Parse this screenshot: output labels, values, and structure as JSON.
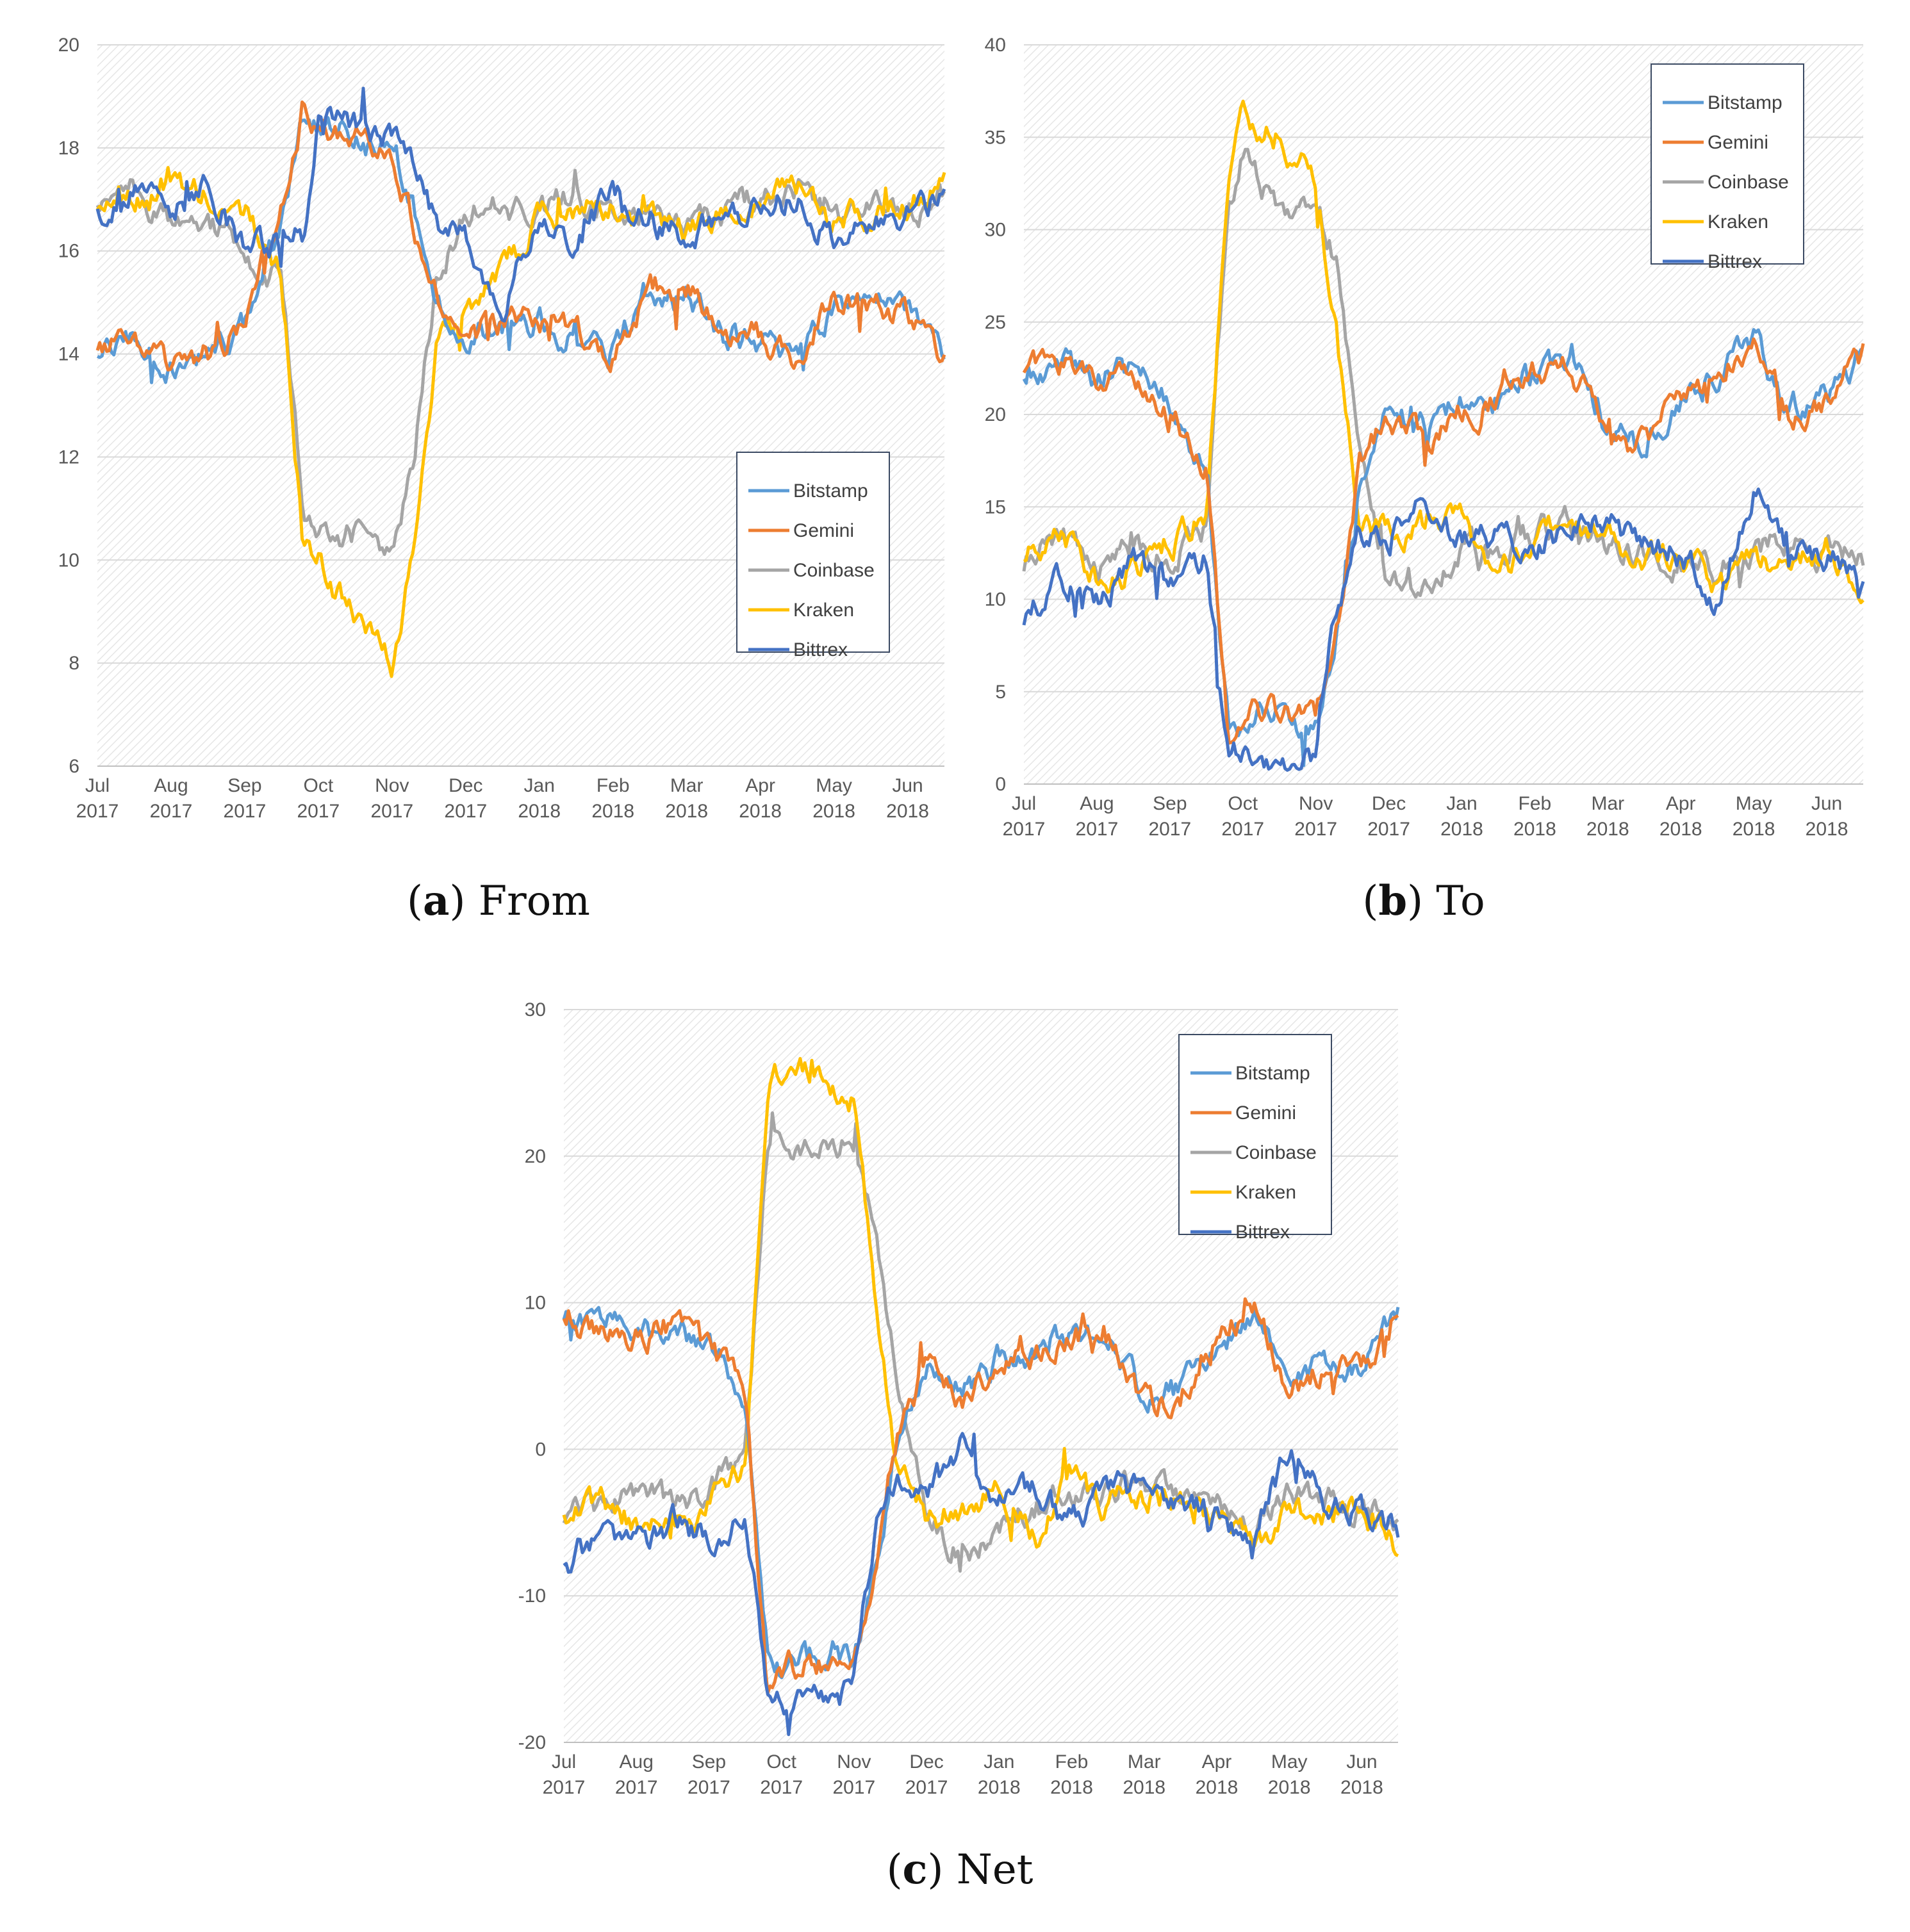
{
  "legend_colors": {
    "Bitstamp": "#5b9bd5",
    "Gemini": "#ed7d31",
    "Coinbase": "#a5a5a5",
    "Kraken": "#ffc000",
    "Bittrex": "#4472c4"
  },
  "chart_data": [
    {
      "type": "line",
      "panel": "a",
      "caption": {
        "letter": "a",
        "text": "From"
      },
      "xlabel": "",
      "ylabel": "",
      "ylim": [
        6,
        20
      ],
      "yticks": [
        "6",
        "8",
        "10",
        "12",
        "14",
        "16",
        "18",
        "20"
      ],
      "xticks": [
        {
          "month": "Jul",
          "year": "2017"
        },
        {
          "month": "Aug",
          "year": "2017"
        },
        {
          "month": "Sep",
          "year": "2017"
        },
        {
          "month": "Oct",
          "year": "2017"
        },
        {
          "month": "Nov",
          "year": "2017"
        },
        {
          "month": "Dec",
          "year": "2017"
        },
        {
          "month": "Jan",
          "year": "2018"
        },
        {
          "month": "Feb",
          "year": "2018"
        },
        {
          "month": "Mar",
          "year": "2018"
        },
        {
          "month": "Apr",
          "year": "2018"
        },
        {
          "month": "May",
          "year": "2018"
        },
        {
          "month": "Jun",
          "year": "2018"
        }
      ],
      "legend_position": "bottom-right",
      "x_months": [
        0,
        0.5,
        1,
        1.5,
        2,
        2.5,
        2.8,
        3,
        3.5,
        4,
        4.3,
        4.6,
        5,
        5.5,
        6,
        6.5,
        7,
        7.5,
        8,
        8.5,
        9,
        9.5,
        10,
        10.5,
        11,
        11.5
      ],
      "series": [
        {
          "name": "Bitstamp",
          "values": [
            13.9,
            14.3,
            13.8,
            14.0,
            14.5,
            16.5,
            18.8,
            18.4,
            18.2,
            17.8,
            16.8,
            15.0,
            14.3,
            14.5,
            14.6,
            14.3,
            14.0,
            15.2,
            15.3,
            14.4,
            14.3,
            13.8,
            15.0,
            14.9,
            14.8,
            13.9
          ]
        },
        {
          "name": "Gemini",
          "values": [
            14.0,
            14.4,
            13.6,
            14.0,
            14.6,
            16.8,
            18.9,
            18.5,
            18.3,
            18.0,
            16.6,
            15.2,
            14.3,
            14.6,
            14.7,
            14.4,
            14.0,
            15.3,
            15.3,
            14.5,
            14.4,
            13.8,
            15.1,
            14.9,
            14.8,
            14.0
          ]
        },
        {
          "name": "Coinbase",
          "values": [
            16.8,
            17.2,
            16.6,
            16.6,
            16.0,
            15.4,
            11.0,
            10.6,
            10.5,
            10.2,
            12.0,
            15.5,
            16.8,
            17.0,
            16.8,
            17.0,
            16.9,
            16.6,
            16.4,
            16.7,
            17.1,
            17.2,
            16.6,
            16.8,
            16.6,
            17.0
          ]
        },
        {
          "name": "Kraken",
          "values": [
            16.7,
            17.0,
            17.2,
            17.1,
            16.8,
            15.5,
            10.2,
            10.0,
            8.8,
            8.0,
            10.2,
            14.0,
            15.0,
            15.5,
            16.6,
            16.9,
            16.8,
            16.5,
            16.4,
            16.9,
            17.1,
            17.3,
            16.6,
            16.8,
            16.8,
            17.4
          ]
        },
        {
          "name": "Bittrex",
          "values": [
            16.7,
            17.1,
            16.8,
            17.4,
            16.0,
            16.2,
            16.3,
            18.6,
            18.4,
            18.2,
            17.6,
            16.5,
            16.3,
            15.0,
            16.6,
            16.2,
            17.1,
            16.7,
            16.3,
            16.6,
            16.9,
            17.0,
            16.2,
            16.6,
            16.7,
            17.1
          ]
        }
      ]
    },
    {
      "type": "line",
      "panel": "b",
      "caption": {
        "letter": "b",
        "text": "To"
      },
      "xlabel": "",
      "ylabel": "",
      "ylim": [
        0,
        40
      ],
      "yticks": [
        "0",
        "5",
        "10",
        "15",
        "20",
        "25",
        "30",
        "35",
        "40"
      ],
      "xticks": [
        {
          "month": "Jul",
          "year": "2017"
        },
        {
          "month": "Aug",
          "year": "2017"
        },
        {
          "month": "Sep",
          "year": "2017"
        },
        {
          "month": "Oct",
          "year": "2017"
        },
        {
          "month": "Nov",
          "year": "2017"
        },
        {
          "month": "Dec",
          "year": "2017"
        },
        {
          "month": "Jan",
          "year": "2018"
        },
        {
          "month": "Feb",
          "year": "2018"
        },
        {
          "month": "Mar",
          "year": "2018"
        },
        {
          "month": "Apr",
          "year": "2018"
        },
        {
          "month": "May",
          "year": "2018"
        },
        {
          "month": "Jun",
          "year": "2018"
        }
      ],
      "legend_position": "top-right",
      "x_months": [
        0,
        0.5,
        1,
        1.5,
        2,
        2.5,
        2.8,
        3,
        3.5,
        4,
        4.3,
        4.6,
        5,
        5.5,
        6,
        6.5,
        7,
        7.5,
        8,
        8.5,
        9,
        9.5,
        10,
        10.5,
        11,
        11.5
      ],
      "series": [
        {
          "name": "Bitstamp",
          "values": [
            22.5,
            23.0,
            22.0,
            22.5,
            21.0,
            17.0,
            3.0,
            3.5,
            3.8,
            3.0,
            8.0,
            16.0,
            20.5,
            19.0,
            20.5,
            21.0,
            22.0,
            23.5,
            19.0,
            18.5,
            21.0,
            22.0,
            24.0,
            20.5,
            21.0,
            23.5
          ]
        },
        {
          "name": "Gemini",
          "values": [
            22.8,
            22.5,
            21.5,
            22.0,
            20.5,
            17.5,
            2.5,
            3.5,
            4.0,
            3.5,
            9.0,
            17.0,
            20.0,
            18.5,
            20.0,
            20.8,
            22.0,
            23.0,
            18.5,
            18.3,
            21.0,
            22.0,
            24.5,
            19.5,
            20.5,
            23.0
          ]
        },
        {
          "name": "Coinbase",
          "values": [
            12.0,
            13.5,
            11.5,
            13.0,
            12.5,
            14.0,
            32.0,
            34.0,
            31.0,
            31.5,
            28.0,
            18.0,
            11.0,
            10.5,
            13.0,
            12.5,
            13.5,
            14.0,
            13.0,
            12.5,
            12.0,
            11.5,
            13.0,
            13.0,
            12.5,
            12.0
          ]
        },
        {
          "name": "Kraken",
          "values": [
            12.5,
            13.5,
            11.0,
            11.5,
            13.0,
            15.0,
            33.0,
            36.0,
            35.0,
            33.0,
            24.0,
            14.0,
            13.5,
            14.0,
            14.0,
            11.5,
            13.0,
            14.5,
            13.0,
            12.5,
            12.5,
            10.5,
            12.0,
            11.5,
            13.0,
            10.0
          ]
        },
        {
          "name": "Bittrex",
          "values": [
            9.0,
            11.0,
            10.0,
            12.0,
            11.0,
            12.5,
            1.5,
            1.2,
            1.0,
            1.5,
            10.0,
            14.0,
            13.5,
            15.5,
            13.0,
            13.5,
            12.0,
            14.5,
            14.0,
            13.0,
            12.5,
            10.0,
            16.0,
            12.5,
            12.5,
            11.0
          ]
        }
      ]
    },
    {
      "type": "line",
      "panel": "c",
      "caption": {
        "letter": "c",
        "text": "Net"
      },
      "xlabel": "",
      "ylabel": "",
      "ylim": [
        -20,
        30
      ],
      "yticks": [
        "-20",
        "-10",
        "0",
        "10",
        "20",
        "30"
      ],
      "xticks": [
        {
          "month": "Jul",
          "year": "2017"
        },
        {
          "month": "Aug",
          "year": "2017"
        },
        {
          "month": "Sep",
          "year": "2017"
        },
        {
          "month": "Oct",
          "year": "2017"
        },
        {
          "month": "Nov",
          "year": "2017"
        },
        {
          "month": "Dec",
          "year": "2017"
        },
        {
          "month": "Jan",
          "year": "2018"
        },
        {
          "month": "Feb",
          "year": "2018"
        },
        {
          "month": "Mar",
          "year": "2018"
        },
        {
          "month": "Apr",
          "year": "2018"
        },
        {
          "month": "May",
          "year": "2018"
        },
        {
          "month": "Jun",
          "year": "2018"
        }
      ],
      "legend_position": "top-right",
      "x_months": [
        0,
        0.5,
        1,
        1.5,
        2,
        2.5,
        2.8,
        3,
        3.5,
        4,
        4.3,
        4.6,
        5,
        5.5,
        6,
        6.5,
        7,
        7.5,
        8,
        8.5,
        9,
        9.5,
        10,
        10.5,
        11,
        11.5
      ],
      "series": [
        {
          "name": "Bitstamp",
          "values": [
            9.0,
            8.5,
            8.0,
            8.0,
            7.0,
            4.0,
            -14.0,
            -15.0,
            -14.5,
            -14.5,
            -8.0,
            1.0,
            6.0,
            4.0,
            6.0,
            7.0,
            8.0,
            8.0,
            3.5,
            4.0,
            7.0,
            9.0,
            5.0,
            6.0,
            5.5,
            9.5
          ]
        },
        {
          "name": "Gemini",
          "values": [
            9.0,
            8.0,
            7.5,
            8.5,
            6.5,
            4.0,
            -16.0,
            -15.0,
            -14.5,
            -15.0,
            -7.0,
            1.5,
            5.5,
            3.5,
            5.5,
            6.5,
            8.0,
            7.5,
            3.0,
            3.5,
            7.5,
            10.0,
            4.5,
            5.5,
            5.0,
            9.5
          ]
        },
        {
          "name": "Coinbase",
          "values": [
            -5.0,
            -4.0,
            -3.0,
            -4.0,
            -3.0,
            -1.0,
            21.0,
            22.0,
            20.0,
            21.0,
            14.0,
            5.0,
            -5.0,
            -7.0,
            -5.0,
            -4.0,
            -3.0,
            -3.0,
            -2.0,
            -4.0,
            -4.0,
            -5.0,
            -3.0,
            -3.5,
            -4.0,
            -5.0
          ]
        },
        {
          "name": "Kraken",
          "values": [
            -4.5,
            -3.5,
            -5.0,
            -5.5,
            -4.0,
            -1.0,
            24.0,
            26.0,
            26.0,
            24.0,
            10.0,
            -1.0,
            -4.5,
            -4.0,
            -3.0,
            -6.0,
            -2.0,
            -4.0,
            -3.0,
            -4.0,
            -4.5,
            -6.5,
            -4.0,
            -4.5,
            -3.5,
            -7.0
          ]
        },
        {
          "name": "Bittrex",
          "values": [
            -8.0,
            -6.0,
            -7.0,
            -5.0,
            -6.0,
            -4.0,
            -16.0,
            -17.0,
            -17.5,
            -16.5,
            -5.0,
            -2.0,
            -3.0,
            0.0,
            -3.5,
            -3.0,
            -5.0,
            -2.5,
            -2.5,
            -3.5,
            -4.5,
            -6.0,
            0.0,
            -3.5,
            -4.0,
            -5.5
          ]
        }
      ]
    }
  ]
}
